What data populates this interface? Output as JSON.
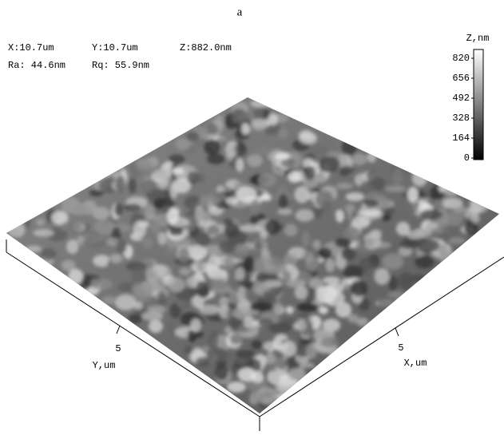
{
  "panel_label": "a",
  "header": {
    "line1": [
      "X:10.7um",
      "Y:10.7um",
      "Z:882.0nm"
    ],
    "line2": [
      "Ra: 44.6nm",
      "Rq: 55.9nm"
    ]
  },
  "colorbar": {
    "title": "Z,nm",
    "ticks": [
      820,
      656,
      492,
      328,
      164,
      0
    ]
  },
  "axes": {
    "y_label": "Y,um",
    "y_tick": "5",
    "x_label": "X,um",
    "x_tick": "5"
  }
}
